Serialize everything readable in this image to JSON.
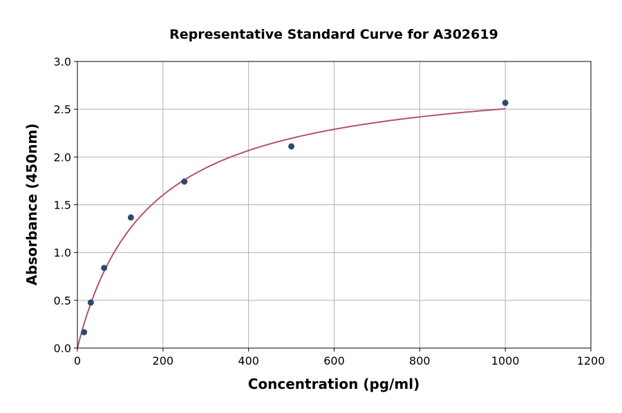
{
  "chart_data": {
    "type": "scatter",
    "title": "Representative Standard Curve for A302619",
    "xlabel": "Concentration (pg/ml)",
    "ylabel": "Absorbance (450nm)",
    "xlim": [
      0,
      1200
    ],
    "ylim": [
      0,
      3.0
    ],
    "xticks": [
      "0",
      "200",
      "400",
      "600",
      "800",
      "1000",
      "1200"
    ],
    "yticks": [
      "0.0",
      "0.5",
      "1.0",
      "1.5",
      "2.0",
      "2.5",
      "3.0"
    ],
    "grid": true,
    "points": [
      {
        "x": 15.6,
        "y": 0.166
      },
      {
        "x": 31.25,
        "y": 0.477
      },
      {
        "x": 62.5,
        "y": 0.839
      },
      {
        "x": 125,
        "y": 1.367
      },
      {
        "x": 250,
        "y": 1.743
      },
      {
        "x": 500,
        "y": 2.111
      },
      {
        "x": 1000,
        "y": 2.567
      }
    ],
    "fit_curve": {
      "x_range": [
        0,
        1000
      ],
      "y_end": 2.505
    },
    "colors": {
      "points": "#2e4a6b",
      "curve": "#b5506e",
      "grid": "#b0b0b0"
    }
  }
}
